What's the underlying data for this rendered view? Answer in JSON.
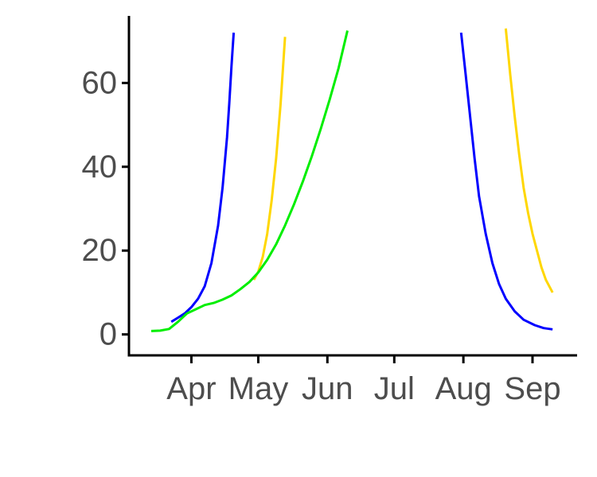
{
  "chart_data": {
    "type": "line",
    "title": "",
    "xlabel": "",
    "ylabel": "",
    "x_axis": {
      "type": "date",
      "range": [
        "2020-03-04",
        "2020-09-21"
      ],
      "ticks": [
        {
          "date": "2020-04-01",
          "label": "Apr"
        },
        {
          "date": "2020-05-01",
          "label": "May"
        },
        {
          "date": "2020-06-01",
          "label": "Jun"
        },
        {
          "date": "2020-07-01",
          "label": "Jul"
        },
        {
          "date": "2020-08-01",
          "label": "Aug"
        },
        {
          "date": "2020-09-01",
          "label": "Sep"
        }
      ]
    },
    "y_axis": {
      "range": [
        -5,
        76
      ],
      "ticks": [
        {
          "value": 0,
          "label": "0"
        },
        {
          "value": 20,
          "label": "20"
        },
        {
          "value": 40,
          "label": "40"
        },
        {
          "value": 60,
          "label": "60"
        }
      ]
    },
    "grid": false,
    "legend": "none",
    "series": [
      {
        "color": "#0000FF",
        "segments": [
          {
            "x": [
              "2020-03-23",
              "2020-03-26",
              "2020-03-29",
              "2020-04-01",
              "2020-04-04",
              "2020-04-07",
              "2020-04-10",
              "2020-04-13",
              "2020-04-15",
              "2020-04-17",
              "2020-04-18",
              "2020-04-19",
              "2020-04-20"
            ],
            "y": [
              3.0,
              4.0,
              5.0,
              6.5,
              8.5,
              11.5,
              17.0,
              26.0,
              35.0,
              47.0,
              55.0,
              64.0,
              72.0
            ]
          },
          {
            "x": [
              "2020-07-31",
              "2020-08-02",
              "2020-08-04",
              "2020-08-06",
              "2020-08-08",
              "2020-08-11",
              "2020-08-14",
              "2020-08-17",
              "2020-08-20",
              "2020-08-24",
              "2020-08-28",
              "2020-09-02",
              "2020-09-06",
              "2020-09-10"
            ],
            "y": [
              72.0,
              62.0,
              52.0,
              42.0,
              33.0,
              24.0,
              17.0,
              12.0,
              8.5,
              5.5,
              3.5,
              2.2,
              1.5,
              1.2
            ]
          }
        ]
      },
      {
        "color": "#FFD700",
        "segments": [
          {
            "x": [
              "2020-04-29",
              "2020-05-01",
              "2020-05-03",
              "2020-05-05",
              "2020-05-07",
              "2020-05-09",
              "2020-05-11",
              "2020-05-12",
              "2020-05-13"
            ],
            "y": [
              13.0,
              15.0,
              18.5,
              24.0,
              32.0,
              42.0,
              55.0,
              63.0,
              71.0
            ]
          },
          {
            "x": [
              "2020-08-20",
              "2020-08-22",
              "2020-08-24",
              "2020-08-26",
              "2020-08-28",
              "2020-08-30",
              "2020-09-01",
              "2020-09-03",
              "2020-09-05",
              "2020-09-07",
              "2020-09-10"
            ],
            "y": [
              73.0,
              62.0,
              52.0,
              43.0,
              35.0,
              29.0,
              24.0,
              20.0,
              16.0,
              13.0,
              10.0
            ]
          }
        ]
      },
      {
        "color": "#00EE00",
        "segments": [
          {
            "x": [
              "2020-03-14",
              "2020-03-18",
              "2020-03-22",
              "2020-03-26",
              "2020-03-30",
              "2020-04-03",
              "2020-04-07",
              "2020-04-11",
              "2020-04-15",
              "2020-04-19",
              "2020-04-23",
              "2020-04-27",
              "2020-05-01",
              "2020-05-05",
              "2020-05-09",
              "2020-05-13",
              "2020-05-17",
              "2020-05-21",
              "2020-05-25",
              "2020-05-29",
              "2020-06-02",
              "2020-06-06",
              "2020-06-10"
            ],
            "y": [
              0.8,
              0.9,
              1.3,
              3.0,
              5.0,
              6.0,
              7.0,
              7.5,
              8.3,
              9.3,
              10.8,
              12.5,
              14.8,
              17.8,
              21.5,
              26.0,
              31.0,
              36.5,
              42.5,
              49.0,
              56.0,
              63.5,
              72.5
            ]
          }
        ]
      }
    ]
  }
}
